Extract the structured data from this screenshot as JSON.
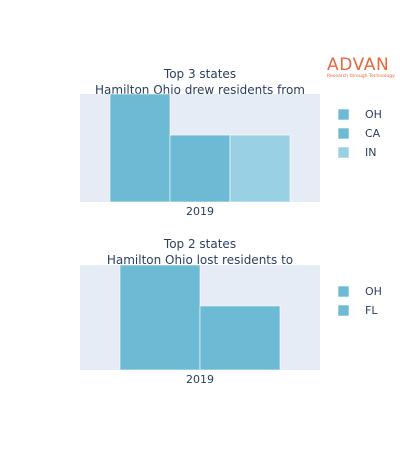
{
  "logo": {
    "name": "ADVAN",
    "tagline": "Research through Technology"
  },
  "colors": {
    "plot_background": "#e5ecf6",
    "text": "#2a3f5f",
    "logo": "#e8673c"
  },
  "chart_data": [
    {
      "type": "bar",
      "title_lines": [
        "Top 3 states",
        "Hamilton Ohio drew residents from"
      ],
      "categories": [
        "2019"
      ],
      "series": [
        {
          "name": "OH",
          "values": [
            100
          ],
          "color": "#6dbad5"
        },
        {
          "name": "CA",
          "values": [
            62
          ],
          "color": "#6dbad5"
        },
        {
          "name": "IN",
          "values": [
            62
          ],
          "color": "#9ad0e3"
        }
      ],
      "ylim": [
        0,
        100
      ],
      "grid": false,
      "legend": "right"
    },
    {
      "type": "bar",
      "title_lines": [
        "Top 2 states",
        "Hamilton Ohio lost residents to"
      ],
      "categories": [
        "2019"
      ],
      "series": [
        {
          "name": "OH",
          "values": [
            100
          ],
          "color": "#6dbad5"
        },
        {
          "name": "FL",
          "values": [
            61
          ],
          "color": "#6dbad5"
        }
      ],
      "ylim": [
        0,
        100
      ],
      "grid": false,
      "legend": "right"
    }
  ]
}
